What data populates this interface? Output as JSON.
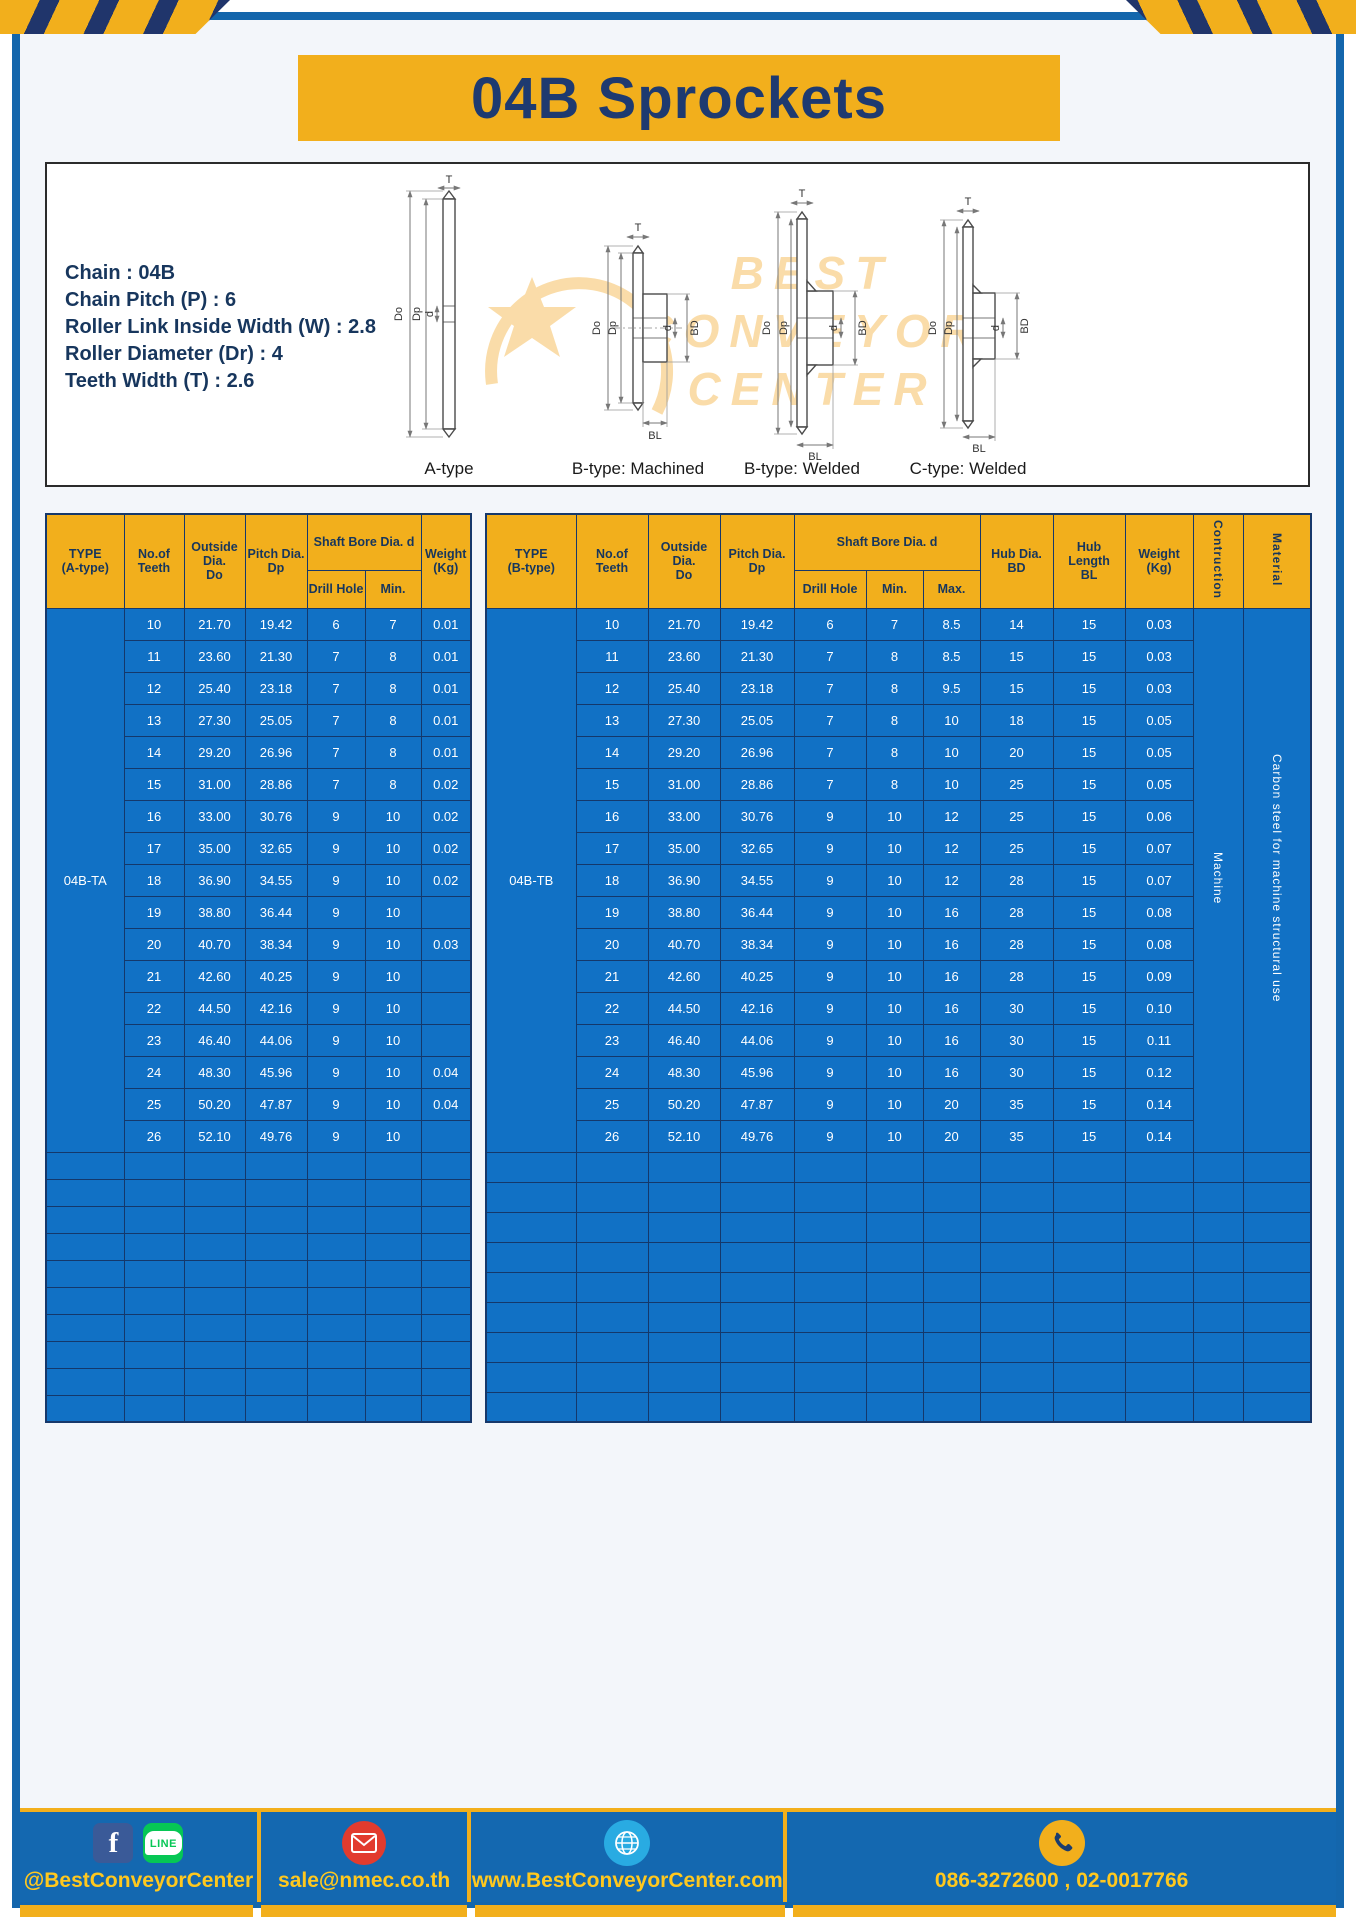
{
  "title": "04B Sprockets",
  "specs": {
    "lines": [
      "Chain  :  04B",
      "Chain Pitch (P)  :  6",
      "Roller Link Inside Width (W)  :  2.8",
      "Roller Diameter (Dr)  :  4",
      "Teeth Width (T)  :  2.6"
    ]
  },
  "drawings": {
    "watermark": [
      "BEST",
      "CONVEYOR",
      "CENTER"
    ],
    "dims": {
      "t": "T",
      "outer": "Do",
      "pitch": "Dp",
      "bore": "d",
      "hub": "BD",
      "hub_len": "BL"
    },
    "labels": [
      "A-type",
      "B-type: Machined",
      "B-type: Welded",
      "C-type: Welded"
    ]
  },
  "table_a": {
    "headers": {
      "type": "TYPE\n(A-type)",
      "teeth": "No.of\nTeeth",
      "outside": "Outside\nDia.\nDo",
      "pitch": "Pitch Dia.\nDp",
      "shaft": "Shaft Bore Dia. d",
      "drill": "Drill Hole",
      "min": "Min.",
      "weight": "Weight\n(Kg)"
    },
    "type_value": "04B-TA",
    "rows": [
      [
        "10",
        "21.70",
        "19.42",
        "6",
        "7",
        "0.01"
      ],
      [
        "11",
        "23.60",
        "21.30",
        "7",
        "8",
        "0.01"
      ],
      [
        "12",
        "25.40",
        "23.18",
        "7",
        "8",
        "0.01"
      ],
      [
        "13",
        "27.30",
        "25.05",
        "7",
        "8",
        "0.01"
      ],
      [
        "14",
        "29.20",
        "26.96",
        "7",
        "8",
        "0.01"
      ],
      [
        "15",
        "31.00",
        "28.86",
        "7",
        "8",
        "0.02"
      ],
      [
        "16",
        "33.00",
        "30.76",
        "9",
        "10",
        "0.02"
      ],
      [
        "17",
        "35.00",
        "32.65",
        "9",
        "10",
        "0.02"
      ],
      [
        "18",
        "36.90",
        "34.55",
        "9",
        "10",
        "0.02"
      ],
      [
        "19",
        "38.80",
        "36.44",
        "9",
        "10",
        ""
      ],
      [
        "20",
        "40.70",
        "38.34",
        "9",
        "10",
        "0.03"
      ],
      [
        "21",
        "42.60",
        "40.25",
        "9",
        "10",
        ""
      ],
      [
        "22",
        "44.50",
        "42.16",
        "9",
        "10",
        ""
      ],
      [
        "23",
        "46.40",
        "44.06",
        "9",
        "10",
        ""
      ],
      [
        "24",
        "48.30",
        "45.96",
        "9",
        "10",
        "0.04"
      ],
      [
        "25",
        "50.20",
        "47.87",
        "9",
        "10",
        "0.04"
      ],
      [
        "26",
        "52.10",
        "49.76",
        "9",
        "10",
        ""
      ]
    ],
    "empty_rows": 10
  },
  "table_b": {
    "headers": {
      "type": "TYPE\n(B-type)",
      "teeth": "No.of\nTeeth",
      "outside": "Outside\nDia.\nDo",
      "pitch": "Pitch Dia.\nDp",
      "shaft": "Shaft Bore Dia. d",
      "drill": "Drill Hole",
      "min": "Min.",
      "max": "Max.",
      "hub_dia": "Hub Dia.\nBD",
      "hub_len": "Hub\nLength\nBL",
      "weight": "Weight\n(Kg)",
      "construction": "Contruction",
      "material": "Material"
    },
    "type_value": "04B-TB",
    "construction_value": "Machine",
    "material_value": "Carbon steel for machine structural use",
    "rows": [
      [
        "10",
        "21.70",
        "19.42",
        "6",
        "7",
        "8.5",
        "14",
        "15",
        "0.03"
      ],
      [
        "11",
        "23.60",
        "21.30",
        "7",
        "8",
        "8.5",
        "15",
        "15",
        "0.03"
      ],
      [
        "12",
        "25.40",
        "23.18",
        "7",
        "8",
        "9.5",
        "15",
        "15",
        "0.03"
      ],
      [
        "13",
        "27.30",
        "25.05",
        "7",
        "8",
        "10",
        "18",
        "15",
        "0.05"
      ],
      [
        "14",
        "29.20",
        "26.96",
        "7",
        "8",
        "10",
        "20",
        "15",
        "0.05"
      ],
      [
        "15",
        "31.00",
        "28.86",
        "7",
        "8",
        "10",
        "25",
        "15",
        "0.05"
      ],
      [
        "16",
        "33.00",
        "30.76",
        "9",
        "10",
        "12",
        "25",
        "15",
        "0.06"
      ],
      [
        "17",
        "35.00",
        "32.65",
        "9",
        "10",
        "12",
        "25",
        "15",
        "0.07"
      ],
      [
        "18",
        "36.90",
        "34.55",
        "9",
        "10",
        "12",
        "28",
        "15",
        "0.07"
      ],
      [
        "19",
        "38.80",
        "36.44",
        "9",
        "10",
        "16",
        "28",
        "15",
        "0.08"
      ],
      [
        "20",
        "40.70",
        "38.34",
        "9",
        "10",
        "16",
        "28",
        "15",
        "0.08"
      ],
      [
        "21",
        "42.60",
        "40.25",
        "9",
        "10",
        "16",
        "28",
        "15",
        "0.09"
      ],
      [
        "22",
        "44.50",
        "42.16",
        "9",
        "10",
        "16",
        "30",
        "15",
        "0.10"
      ],
      [
        "23",
        "46.40",
        "44.06",
        "9",
        "10",
        "16",
        "30",
        "15",
        "0.11"
      ],
      [
        "24",
        "48.30",
        "45.96",
        "9",
        "10",
        "16",
        "30",
        "15",
        "0.12"
      ],
      [
        "25",
        "50.20",
        "47.87",
        "9",
        "10",
        "20",
        "35",
        "15",
        "0.14"
      ],
      [
        "26",
        "52.10",
        "49.76",
        "9",
        "10",
        "20",
        "35",
        "15",
        "0.14"
      ]
    ],
    "empty_rows": 9
  },
  "footer": {
    "facebook_glyph": "f",
    "line_logo_text": "LINE",
    "sections": [
      {
        "label": "@BestConveyorCenter"
      },
      {
        "label": "sale@nmec.co.th"
      },
      {
        "label": "www.BestConveyorCenter.com"
      },
      {
        "label": "086-3272600 , 02-0017766"
      }
    ]
  }
}
